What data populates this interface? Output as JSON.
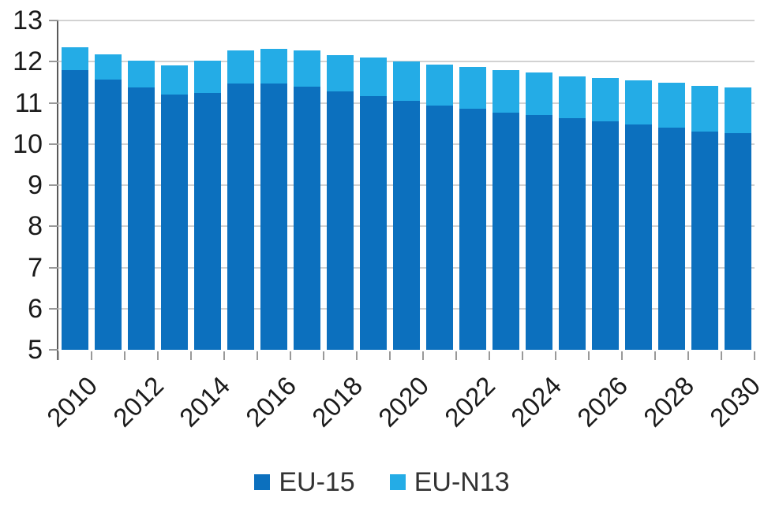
{
  "chart_data": {
    "type": "bar",
    "stacked": true,
    "title": "",
    "xlabel": "",
    "ylabel": "",
    "categories": [
      "2010",
      "2011",
      "2012",
      "2013",
      "2014",
      "2015",
      "2016",
      "2017",
      "2018",
      "2019",
      "2020",
      "2021",
      "2022",
      "2023",
      "2024",
      "2025",
      "2026",
      "2027",
      "2028",
      "2029",
      "2030"
    ],
    "series": [
      {
        "name": "EU-15",
        "color": "#0C70BE",
        "values": [
          11.8,
          11.57,
          11.37,
          11.21,
          11.23,
          11.46,
          11.47,
          11.39,
          11.27,
          11.17,
          11.05,
          10.94,
          10.86,
          10.77,
          10.7,
          10.62,
          10.55,
          10.47,
          10.39,
          10.31,
          10.27
        ]
      },
      {
        "name": "EU-N13",
        "color": "#24ACE6",
        "values": [
          0.55,
          0.6,
          0.66,
          0.69,
          0.8,
          0.81,
          0.85,
          0.89,
          0.89,
          0.94,
          0.96,
          0.99,
          1.01,
          1.02,
          1.04,
          1.03,
          1.05,
          1.07,
          1.1,
          1.1,
          1.11
        ]
      }
    ],
    "ylim": [
      5,
      13
    ],
    "yticks": [
      5,
      6,
      7,
      8,
      9,
      10,
      11,
      12,
      13
    ],
    "xtick_labels": [
      "2010",
      "2012",
      "2014",
      "2016",
      "2018",
      "2020",
      "2022",
      "2024",
      "2026",
      "2028",
      "2030"
    ],
    "legend_position": "bottom",
    "grid": true,
    "colors": {
      "axis": "#595959",
      "tick": "#999999",
      "gridline": "#D2D2D2",
      "axis_label_text": "#1A1A1A",
      "legend_text": "#333333",
      "background": "#FFFFFF"
    }
  },
  "legend": {
    "items": [
      {
        "label": "EU-15",
        "color": "#0C70BE"
      },
      {
        "label": "EU-N13",
        "color": "#24ACE6"
      }
    ]
  }
}
